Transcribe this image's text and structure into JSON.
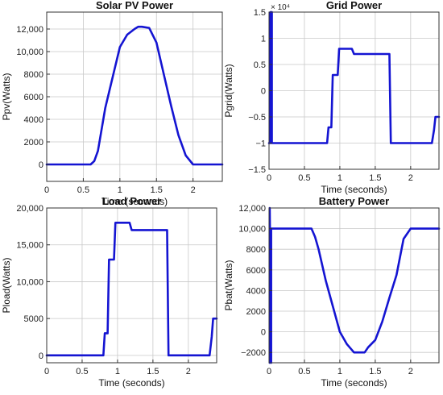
{
  "figure": {
    "line_color": "#1414d2",
    "axes_color": "#333333",
    "grid_color": "#c8c8c8"
  },
  "chart_data": [
    {
      "type": "line",
      "title": "Solar PV Power",
      "xlabel": "Time (seconds)",
      "ylabel": "Ppv(Watts)",
      "xlim": [
        0,
        2.4
      ],
      "ylim": [
        -1500,
        13500
      ],
      "grid": true,
      "xticks": [
        0,
        0.5,
        1,
        1.5,
        2
      ],
      "xtick_labels": [
        "0",
        "0.5",
        "1",
        "1.5",
        "2"
      ],
      "yticks": [
        0,
        2000,
        4000,
        6000,
        8000,
        10000,
        12000
      ],
      "ytick_labels": [
        "0",
        "2000",
        "4000",
        "6000",
        "8000",
        "10,000",
        "12,000"
      ],
      "exponent_label": "",
      "series": [
        {
          "x": [
            0,
            0.6,
            0.65,
            0.7,
            0.8,
            0.9,
            1.0,
            1.1,
            1.2,
            1.25,
            1.3,
            1.4,
            1.5,
            1.6,
            1.7,
            1.8,
            1.9,
            2.0,
            2.4
          ],
          "y": [
            0,
            0,
            300,
            1200,
            5000,
            7700,
            10400,
            11500,
            12000,
            12200,
            12200,
            12100,
            10800,
            8000,
            5200,
            2600,
            800,
            0,
            0
          ]
        }
      ]
    },
    {
      "type": "line",
      "title": "Grid Power",
      "xlabel": "Time (seconds)",
      "ylabel": "Pgrid(Watts)",
      "xlim": [
        0,
        2.4
      ],
      "ylim": [
        -1.5,
        1.5
      ],
      "grid": true,
      "xticks": [
        0,
        0.5,
        1,
        1.5,
        2
      ],
      "xtick_labels": [
        "0",
        "0.5",
        "1",
        "1.5",
        "2"
      ],
      "yticks": [
        -1.5,
        -1,
        -0.5,
        0,
        0.5,
        1,
        1.5
      ],
      "ytick_labels": [
        "−1.5",
        "−1",
        "−0.5",
        "0",
        "0.5",
        "1",
        "1.5"
      ],
      "exponent_label": "× 10⁴",
      "series": [
        {
          "x": [
            0,
            0.02,
            0.02,
            0.04,
            0.04,
            0.82,
            0.84,
            0.88,
            0.9,
            0.93,
            0.97,
            0.99,
            1.0,
            1.02,
            1.17,
            1.2,
            1.7,
            1.72,
            2.3,
            2.33,
            2.35,
            2.4
          ],
          "y": [
            -1,
            -1,
            1.5,
            1.5,
            -1,
            -1,
            -0.7,
            -0.7,
            0.3,
            0.3,
            0.3,
            0.8,
            0.8,
            0.8,
            0.8,
            0.7,
            0.7,
            -1,
            -1,
            -0.75,
            -0.5,
            -0.5
          ]
        }
      ]
    },
    {
      "type": "line",
      "title": "Load Power",
      "xlabel": "Time (seconds)",
      "ylabel": "Pload(Watts)",
      "xlim": [
        0,
        2.4
      ],
      "ylim": [
        -1000,
        20000
      ],
      "grid": true,
      "xticks": [
        0,
        0.5,
        1,
        1.5,
        2
      ],
      "xtick_labels": [
        "0",
        "0.5",
        "1",
        "1.5",
        "2"
      ],
      "yticks": [
        0,
        5000,
        10000,
        15000,
        20000
      ],
      "ytick_labels": [
        "0",
        "5000",
        "10,000",
        "15,000",
        "20,000"
      ],
      "exponent_label": "",
      "series": [
        {
          "x": [
            0,
            0.8,
            0.82,
            0.86,
            0.88,
            0.9,
            0.95,
            0.97,
            1.0,
            1.02,
            1.17,
            1.2,
            1.7,
            1.72,
            2.3,
            2.33,
            2.35,
            2.4
          ],
          "y": [
            0,
            0,
            3000,
            3000,
            13000,
            13000,
            13000,
            18000,
            18000,
            18000,
            18000,
            17000,
            17000,
            0,
            0,
            2500,
            5000,
            5000
          ]
        }
      ]
    },
    {
      "type": "line",
      "title": "Battery Power",
      "xlabel": "Time (seconds)",
      "ylabel": "Pbat(Watts)",
      "xlim": [
        0,
        2.4
      ],
      "ylim": [
        -3000,
        12000
      ],
      "grid": true,
      "xticks": [
        0,
        0.5,
        1,
        1.5,
        2
      ],
      "xtick_labels": [
        "0",
        "0.5",
        "1",
        "1.5",
        "2"
      ],
      "yticks": [
        -2000,
        0,
        2000,
        4000,
        6000,
        8000,
        10000,
        12000
      ],
      "ytick_labels": [
        "−2000",
        "0",
        "2000",
        "4000",
        "6000",
        "8000",
        "10,000",
        "12,000"
      ],
      "exponent_label": "",
      "series": [
        {
          "x": [
            0.01,
            0.01,
            0.03,
            0.03,
            0.05,
            0.05,
            0.6,
            0.65,
            0.7,
            0.8,
            0.9,
            1.0,
            1.1,
            1.2,
            1.25,
            1.35,
            1.4,
            1.5,
            1.6,
            1.7,
            1.8,
            1.9,
            2.0,
            2.4
          ],
          "y": [
            -3000,
            12000,
            -3000,
            10000,
            10000,
            10000,
            10000,
            9200,
            8000,
            5000,
            2500,
            0,
            -1200,
            -2000,
            -2000,
            -2000,
            -1500,
            -800,
            1000,
            3300,
            5500,
            9000,
            10000,
            10000
          ]
        }
      ]
    }
  ]
}
